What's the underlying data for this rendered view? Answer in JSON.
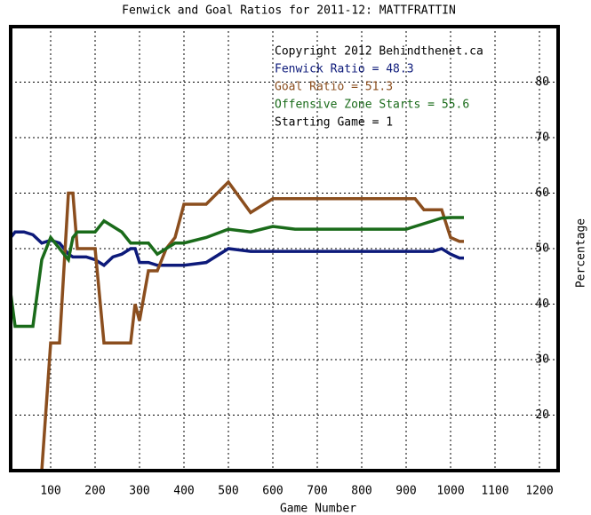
{
  "chart_data": {
    "type": "line",
    "title": "Fenwick and Goal Ratios for 2011-12: MATTFRATTIN",
    "x_label": "Game Number",
    "y_label": "Percentage",
    "notes": [
      {
        "text": "Copyright 2012 Behindthenet.ca",
        "color": "#000000"
      },
      {
        "text": "Fenwick Ratio = 48.3",
        "color": "#0d1a7a"
      },
      {
        "text": "Goal Ratio = 51.3",
        "color": "#8b4e1e"
      },
      {
        "text": "Offensive Zone Starts = 55.6",
        "color": "#1a6b1a"
      },
      {
        "text": "Starting Game = 1",
        "color": "#000000"
      }
    ],
    "x": [
      10,
      20,
      40,
      60,
      80,
      100,
      120,
      140,
      150,
      160,
      180,
      200,
      220,
      240,
      260,
      280,
      290,
      300,
      320,
      340,
      360,
      380,
      400,
      450,
      500,
      550,
      600,
      650,
      700,
      750,
      800,
      850,
      900,
      920,
      940,
      960,
      980,
      1000,
      1020,
      1030
    ],
    "series": [
      {
        "color": "#0d1a7a",
        "values": [
          52,
          53,
          53,
          52.5,
          51,
          51.5,
          51,
          49,
          48.5,
          48.5,
          48.5,
          48,
          47,
          48.5,
          49,
          50,
          50,
          47.5,
          47.5,
          47,
          47,
          47,
          47,
          47.5,
          50,
          49.5,
          49.5,
          49.5,
          49.5,
          49.5,
          49.5,
          49.5,
          49.5,
          49.5,
          49.5,
          49.5,
          50,
          49,
          48.3,
          48.3
        ]
      },
      {
        "color": "#8b4e1e",
        "values": [
          null,
          null,
          null,
          null,
          10,
          33,
          33,
          60,
          60,
          50,
          50,
          50,
          33,
          33,
          33,
          33,
          40,
          37,
          46,
          46,
          50,
          52,
          58,
          58,
          62,
          56.5,
          59,
          59,
          59,
          59,
          59,
          59,
          59,
          59,
          57,
          57,
          57,
          52,
          51.3,
          51.3
        ]
      },
      {
        "color": "#1a6b1a",
        "values": [
          42,
          36,
          36,
          36,
          48,
          52,
          50,
          48,
          52,
          53,
          53,
          53,
          55,
          54,
          53,
          51,
          51,
          51,
          51,
          49,
          50,
          51,
          51,
          52,
          53.5,
          53,
          54,
          53.5,
          53.5,
          53.5,
          53.5,
          53.5,
          53.5,
          54,
          54.5,
          55,
          55.5,
          55.6,
          55.6,
          55.6
        ]
      }
    ],
    "xlim": [
      10,
      1242
    ],
    "ylim": [
      10,
      90
    ],
    "xticks": [
      100,
      200,
      300,
      400,
      500,
      600,
      700,
      800,
      900,
      1000,
      1100,
      1200
    ],
    "yticks": [
      20,
      30,
      40,
      50,
      60,
      70,
      80
    ],
    "grid": true
  }
}
